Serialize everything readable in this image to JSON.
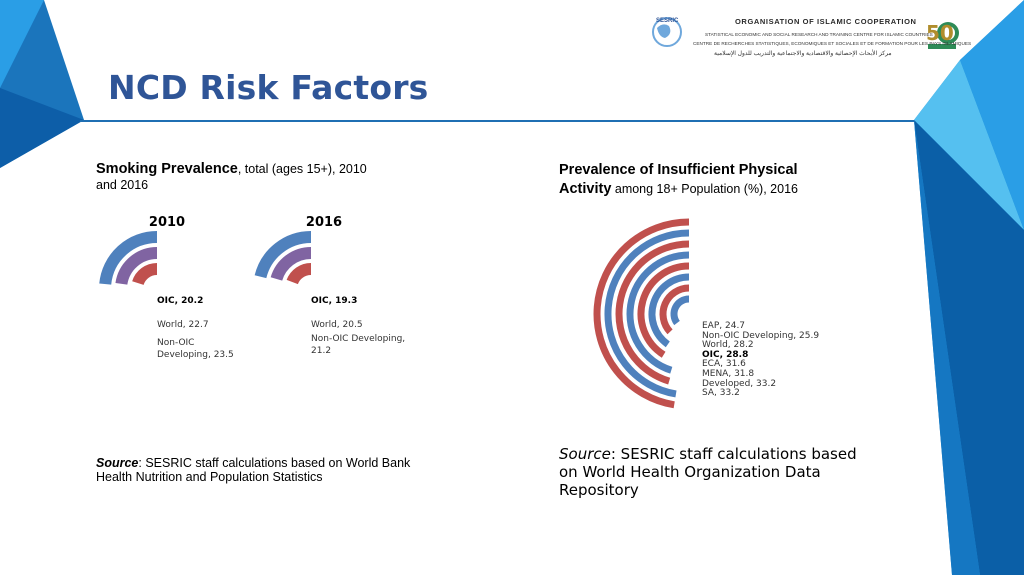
{
  "header": {
    "org_title": "ORGANISATION OF ISLAMIC COOPERATION",
    "org_line1": "STATISTICAL ECONOMIC AND SOCIAL RESEARCH AND TRAINING CENTRE FOR ISLAMIC COUNTRIES",
    "org_line2": "CENTRE DE RECHERCHES STATISTIQUES, ECONOMIQUES ET SOCIALES ET DE FORMATION POUR LES PAYS ISLAMIQUES",
    "org_line3": "مركز الأبحاث الإحصائية والاقتصادية والاجتماعية والتدريب للدول الإسلامية",
    "logo_text": "SESRIC",
    "anniversary_text": "50"
  },
  "page": {
    "title": "NCD Risk Factors"
  },
  "left_panel": {
    "heading_bold": "Smoking Prevalence",
    "heading_rest": ", total (ages 15+), 2010",
    "heading_line2": "and 2016",
    "source_label": "Source",
    "source_text": ": SESRIC staff calculations based on World Bank",
    "source_line2": "Health Nutrition and Population Statistics"
  },
  "right_panel": {
    "heading_bold1": "Prevalence of Insufficient Physical",
    "heading_bold2": "Activity",
    "heading_rest": " among 18+ Population (%), 2016",
    "source_label": "Source",
    "source_text": ": SESRIC staff calculations based",
    "source_line2": "on World Health Organization Data",
    "source_line3": "Repository"
  },
  "colors": {
    "blue": "#4f81bd",
    "red": "#c0504d",
    "purple": "#8064a2",
    "title": "#2f5597",
    "accent": "#1f6fb3"
  },
  "chart_data": [
    {
      "type": "radial-bar",
      "title": "2010",
      "max": 100,
      "series": [
        {
          "label": "OIC",
          "value": 20.2,
          "text": "OIC, 20.2",
          "color": "#c0504d"
        },
        {
          "label": "World",
          "value": 22.7,
          "text": "World, 22.7",
          "color": "#8064a2"
        },
        {
          "label": "Non-OIC Developing",
          "value": 23.5,
          "text_lines": [
            "Non-OIC",
            "Developing, 23.5"
          ],
          "color": "#4f81bd"
        }
      ]
    },
    {
      "type": "radial-bar",
      "title": "2016",
      "max": 100,
      "series": [
        {
          "label": "OIC",
          "value": 19.3,
          "text": "OIC, 19.3",
          "color": "#c0504d"
        },
        {
          "label": "World",
          "value": 20.5,
          "text": "World, 20.5",
          "color": "#8064a2"
        },
        {
          "label": "Non-OIC Developing",
          "value": 21.2,
          "text_lines": [
            "Non-OIC Developing,",
            "21.2"
          ],
          "color": "#4f81bd"
        }
      ]
    },
    {
      "type": "radial-bar",
      "title": "",
      "max": 70,
      "series": [
        {
          "label": "EAP",
          "value": 24.7,
          "text": "EAP, 24.7",
          "color": "#4f81bd"
        },
        {
          "label": "Non-OIC Developing",
          "value": 25.9,
          "text": "Non-OIC Developing, 25.9",
          "color": "#c0504d"
        },
        {
          "label": "World",
          "value": 28.2,
          "text": "World, 28.2",
          "color": "#4f81bd"
        },
        {
          "label": "OIC",
          "value": 28.8,
          "text": "OIC, 28.8",
          "color": "#c0504d",
          "bold": true
        },
        {
          "label": "ECA",
          "value": 31.6,
          "text": "ECA, 31.6",
          "color": "#4f81bd"
        },
        {
          "label": "MENA",
          "value": 31.8,
          "text": "MENA, 31.8",
          "color": "#c0504d"
        },
        {
          "label": "Developed",
          "value": 33.2,
          "text": "Developed, 33.2",
          "color": "#4f81bd"
        },
        {
          "label": "SA",
          "value": 33.2,
          "text": "SA, 33.2",
          "color": "#c0504d"
        }
      ]
    }
  ]
}
